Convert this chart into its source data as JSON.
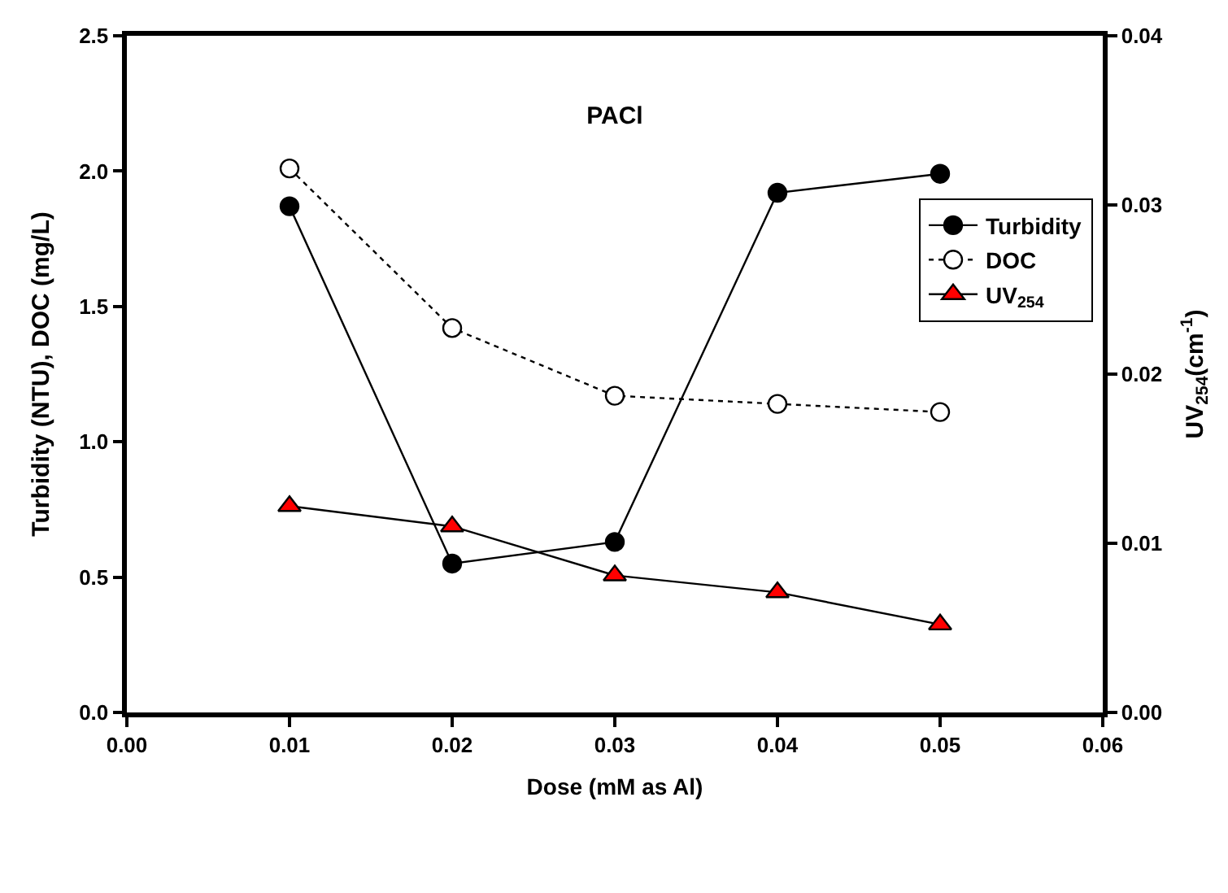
{
  "chart_data": {
    "type": "line",
    "title": "PACl",
    "xlabel": "Dose (mM as Al)",
    "ylabel": "Turbidity (NTU), DOC (mg/L)",
    "y2label": "UV$_{254}$(cm$^{-1}$)",
    "x": [
      0.01,
      0.02,
      0.03,
      0.04,
      0.05
    ],
    "series": [
      {
        "name": "Turbidity",
        "color": "#000000",
        "values": [
          1.87,
          0.55,
          0.63,
          1.92,
          1.99
        ],
        "marker": "circle",
        "line_style": "solid"
      },
      {
        "name": "DOC",
        "color": "#ffffff",
        "values": [
          2.01,
          1.42,
          1.17,
          1.14,
          1.11
        ],
        "marker": "circle",
        "line_style": "dotted"
      },
      {
        "name": "UV$_{254}$",
        "color": "#ff0000",
        "values": [
          0.0122,
          0.011,
          0.0081,
          0.0071,
          0.0052
        ],
        "marker": "triangle",
        "line_style": "solid",
        "axis": "y2"
      }
    ],
    "xlim": [
      0.0,
      0.06
    ],
    "xticks": [
      {
        "value": 0,
        "label": "0.00"
      },
      0.01,
      0.02,
      0.03,
      0.04,
      0.05,
      0.06
    ],
    "ylim": [
      0.0,
      2.5
    ],
    "yticks": [
      {
        "value": 0,
        "label": "0.0"
      },
      0.5,
      {
        "value": 1,
        "label": "1.0"
      },
      1.5,
      {
        "value": 2,
        "label": "2.0"
      },
      2.5
    ],
    "y2lim": [
      0.0,
      0.04
    ],
    "y2ticks": [
      {
        "value": 0,
        "label": "0.00"
      },
      0.01,
      0.02,
      0.03,
      0.04
    ],
    "legend": "top right"
  }
}
